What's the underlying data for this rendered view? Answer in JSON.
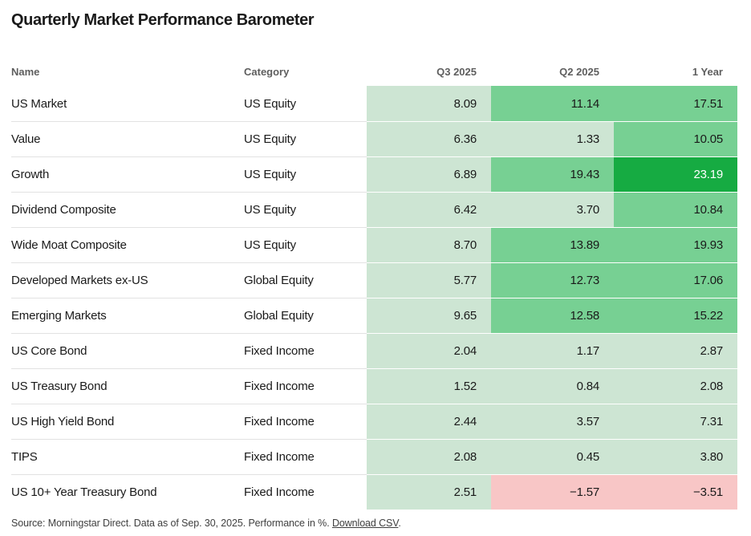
{
  "title": "Quarterly Market Performance Barometer",
  "header": {
    "name": "Name",
    "category": "Category",
    "q3": "Q3 2025",
    "q2": "Q2 2025",
    "year1": "1 Year"
  },
  "palette": {
    "positive_low": "#cde5d3",
    "positive_mid": "#77d093",
    "positive_high": "#16ab42",
    "negative": "#f8c6c6",
    "row_divider": "#e2e2e2"
  },
  "table": {
    "rows": [
      {
        "name": "US Market",
        "category": "US Equity",
        "values": [
          {
            "display": "8.09",
            "value": 8.09,
            "tone": "light"
          },
          {
            "display": "11.14",
            "value": 11.14,
            "tone": "medium"
          },
          {
            "display": "17.51",
            "value": 17.51,
            "tone": "medium"
          }
        ]
      },
      {
        "name": "Value",
        "category": "US Equity",
        "values": [
          {
            "display": "6.36",
            "value": 6.36,
            "tone": "light"
          },
          {
            "display": "1.33",
            "value": 1.33,
            "tone": "light"
          },
          {
            "display": "10.05",
            "value": 10.05,
            "tone": "medium"
          }
        ]
      },
      {
        "name": "Growth",
        "category": "US Equity",
        "values": [
          {
            "display": "6.89",
            "value": 6.89,
            "tone": "light"
          },
          {
            "display": "19.43",
            "value": 19.43,
            "tone": "medium"
          },
          {
            "display": "23.19",
            "value": 23.19,
            "tone": "dark"
          }
        ]
      },
      {
        "name": "Dividend Composite",
        "category": "US Equity",
        "values": [
          {
            "display": "6.42",
            "value": 6.42,
            "tone": "light"
          },
          {
            "display": "3.70",
            "value": 3.7,
            "tone": "light"
          },
          {
            "display": "10.84",
            "value": 10.84,
            "tone": "medium"
          }
        ]
      },
      {
        "name": "Wide Moat Composite",
        "category": "US Equity",
        "values": [
          {
            "display": "8.70",
            "value": 8.7,
            "tone": "light"
          },
          {
            "display": "13.89",
            "value": 13.89,
            "tone": "medium"
          },
          {
            "display": "19.93",
            "value": 19.93,
            "tone": "medium"
          }
        ]
      },
      {
        "name": "Developed Markets ex-US",
        "category": "Global Equity",
        "values": [
          {
            "display": "5.77",
            "value": 5.77,
            "tone": "light"
          },
          {
            "display": "12.73",
            "value": 12.73,
            "tone": "medium"
          },
          {
            "display": "17.06",
            "value": 17.06,
            "tone": "medium"
          }
        ]
      },
      {
        "name": "Emerging Markets",
        "category": "Global Equity",
        "values": [
          {
            "display": "9.65",
            "value": 9.65,
            "tone": "light"
          },
          {
            "display": "12.58",
            "value": 12.58,
            "tone": "medium"
          },
          {
            "display": "15.22",
            "value": 15.22,
            "tone": "medium"
          }
        ]
      },
      {
        "name": "US Core Bond",
        "category": "Fixed Income",
        "values": [
          {
            "display": "2.04",
            "value": 2.04,
            "tone": "light"
          },
          {
            "display": "1.17",
            "value": 1.17,
            "tone": "light"
          },
          {
            "display": "2.87",
            "value": 2.87,
            "tone": "light"
          }
        ]
      },
      {
        "name": "US Treasury Bond",
        "category": "Fixed Income",
        "values": [
          {
            "display": "1.52",
            "value": 1.52,
            "tone": "light"
          },
          {
            "display": "0.84",
            "value": 0.84,
            "tone": "light"
          },
          {
            "display": "2.08",
            "value": 2.08,
            "tone": "light"
          }
        ]
      },
      {
        "name": "US High Yield Bond",
        "category": "Fixed Income",
        "values": [
          {
            "display": "2.44",
            "value": 2.44,
            "tone": "light"
          },
          {
            "display": "3.57",
            "value": 3.57,
            "tone": "light"
          },
          {
            "display": "7.31",
            "value": 7.31,
            "tone": "light"
          }
        ]
      },
      {
        "name": "TIPS",
        "category": "Fixed Income",
        "values": [
          {
            "display": "2.08",
            "value": 2.08,
            "tone": "light"
          },
          {
            "display": "0.45",
            "value": 0.45,
            "tone": "light"
          },
          {
            "display": "3.80",
            "value": 3.8,
            "tone": "light"
          }
        ]
      },
      {
        "name": "US 10+ Year Treasury Bond",
        "category": "Fixed Income",
        "values": [
          {
            "display": "2.51",
            "value": 2.51,
            "tone": "light"
          },
          {
            "display": "−1.57",
            "value": -1.57,
            "tone": "negative"
          },
          {
            "display": "−3.51",
            "value": -3.51,
            "tone": "negative"
          }
        ]
      }
    ]
  },
  "footer": {
    "prefix": "Source: Morningstar Direct. Data as of Sep. 30, 2025. Performance in %. ",
    "link_label": "Download CSV",
    "suffix": "."
  },
  "chart_data": {
    "type": "heatmap",
    "title": "Quarterly Market Performance Barometer",
    "columns": [
      "Q3 2025",
      "Q2 2025",
      "1 Year"
    ],
    "rows": [
      "US Market",
      "Value",
      "Growth",
      "Dividend Composite",
      "Wide Moat Composite",
      "Developed Markets ex-US",
      "Emerging Markets",
      "US Core Bond",
      "US Treasury Bond",
      "US High Yield Bond",
      "TIPS",
      "US 10+ Year Treasury Bond"
    ],
    "categories_by_row": [
      "US Equity",
      "US Equity",
      "US Equity",
      "US Equity",
      "US Equity",
      "Global Equity",
      "Global Equity",
      "Fixed Income",
      "Fixed Income",
      "Fixed Income",
      "Fixed Income",
      "Fixed Income"
    ],
    "values": [
      [
        8.09,
        11.14,
        17.51
      ],
      [
        6.36,
        1.33,
        10.05
      ],
      [
        6.89,
        19.43,
        23.19
      ],
      [
        6.42,
        3.7,
        10.84
      ],
      [
        8.7,
        13.89,
        19.93
      ],
      [
        5.77,
        12.73,
        17.06
      ],
      [
        9.65,
        12.58,
        15.22
      ],
      [
        2.04,
        1.17,
        2.87
      ],
      [
        1.52,
        0.84,
        2.08
      ],
      [
        2.44,
        3.57,
        7.31
      ],
      [
        2.08,
        0.45,
        3.8
      ],
      [
        2.51,
        -1.57,
        -3.51
      ]
    ],
    "unit": "%",
    "color_rule": "negative values pink #f8c6c6; 0-10 light green #cde5d3; 10-20 medium green #77d093; >=20 dark green #16ab42 with white text"
  }
}
